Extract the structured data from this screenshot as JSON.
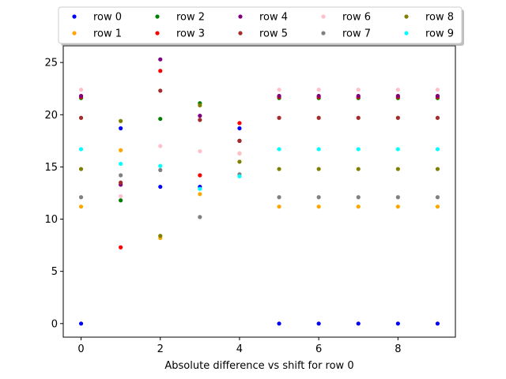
{
  "chart_data": {
    "type": "scatter",
    "title": "",
    "xlabel": "Absolute difference vs shift for row 0",
    "ylabel": "",
    "xlim": [
      -0.45,
      9.45
    ],
    "ylim": [
      -1.3,
      26.6
    ],
    "xticks": [
      0,
      2,
      4,
      6,
      8
    ],
    "yticks": [
      0,
      5,
      10,
      15,
      20,
      25
    ],
    "grid": false,
    "legend_position": "top-center",
    "legend_columns": 5,
    "x": [
      0,
      1,
      2,
      3,
      4,
      5,
      6,
      7,
      8,
      9
    ],
    "series": [
      {
        "name": "row 0",
        "color": "#0000ff",
        "values": [
          0,
          18.7,
          13.1,
          13.1,
          18.7,
          0,
          0,
          0,
          0,
          0
        ]
      },
      {
        "name": "row 1",
        "color": "#ffa500",
        "values": [
          11.2,
          16.6,
          8.2,
          12.4,
          16.3,
          11.2,
          11.2,
          11.2,
          11.2,
          11.2
        ]
      },
      {
        "name": "row 2",
        "color": "#008000",
        "values": [
          21.6,
          11.8,
          19.6,
          21.1,
          17.5,
          21.6,
          21.6,
          21.6,
          21.6,
          21.6
        ]
      },
      {
        "name": "row 3",
        "color": "#ff0000",
        "values": [
          21.7,
          7.3,
          24.2,
          14.2,
          19.2,
          21.7,
          21.7,
          21.7,
          21.7,
          21.7
        ]
      },
      {
        "name": "row 4",
        "color": "#800080",
        "values": [
          21.8,
          13.3,
          25.3,
          19.9,
          17.5,
          21.8,
          21.8,
          21.8,
          21.8,
          21.8
        ]
      },
      {
        "name": "row 5",
        "color": "#a52a2a",
        "values": [
          19.7,
          13.5,
          22.3,
          19.5,
          17.5,
          19.7,
          19.7,
          19.7,
          19.7,
          19.7
        ]
      },
      {
        "name": "row 6",
        "color": "#ffc0cb",
        "values": [
          22.4,
          12.2,
          17.0,
          16.5,
          16.3,
          22.4,
          22.4,
          22.4,
          22.4,
          22.4
        ]
      },
      {
        "name": "row 7",
        "color": "#808080",
        "values": [
          12.1,
          14.2,
          14.7,
          10.2,
          14.3,
          12.1,
          12.1,
          12.1,
          12.1,
          12.1
        ]
      },
      {
        "name": "row 8",
        "color": "#808000",
        "values": [
          14.8,
          19.4,
          8.4,
          20.9,
          15.5,
          14.8,
          14.8,
          14.8,
          14.8,
          14.8
        ]
      },
      {
        "name": "row 9",
        "color": "#00ffff",
        "values": [
          16.7,
          15.3,
          15.1,
          12.9,
          14.1,
          16.7,
          16.7,
          16.7,
          16.7,
          16.7
        ]
      }
    ]
  }
}
